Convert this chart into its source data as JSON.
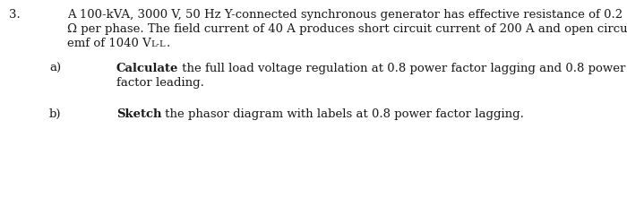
{
  "question_number": "3.",
  "main_line1": "A 100-kVA, 3000 V, 50 Hz Y-connected synchronous generator has effective resistance of 0.2",
  "main_line2": "Ω per phase. The field current of 40 A produces short circuit current of 200 A and open circuit",
  "main_line3_pre": "emf of 1040 V",
  "main_line3_sub": "L-L",
  "main_line3_post": ".",
  "part_a_label": "a)",
  "part_a_bold": "Calculate",
  "part_a_rest": " the full load voltage regulation at 0.8 power factor lagging and 0.8 power",
  "part_a_line2": "factor leading.",
  "part_b_label": "b)",
  "part_b_bold": "Sketch",
  "part_b_rest": " the phasor diagram with labels at 0.8 power factor lagging.",
  "fontsize": 9.5,
  "background_color": "#ffffff",
  "text_color": "#1a1a1a",
  "font_family": "DejaVu Serif"
}
